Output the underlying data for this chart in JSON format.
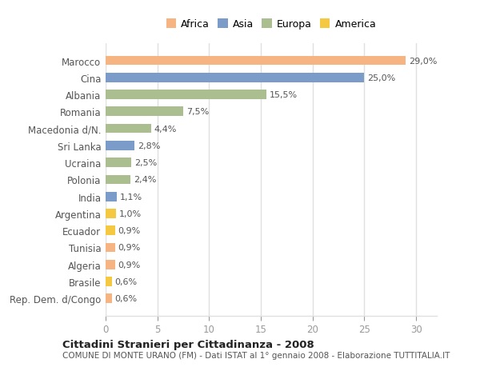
{
  "categories": [
    "Marocco",
    "Cina",
    "Albania",
    "Romania",
    "Macedonia d/N.",
    "Sri Lanka",
    "Ucraina",
    "Polonia",
    "India",
    "Argentina",
    "Ecuador",
    "Tunisia",
    "Algeria",
    "Brasile",
    "Rep. Dem. d/Congo"
  ],
  "values": [
    29.0,
    25.0,
    15.5,
    7.5,
    4.4,
    2.8,
    2.5,
    2.4,
    1.1,
    1.0,
    0.9,
    0.9,
    0.9,
    0.6,
    0.6
  ],
  "labels": [
    "29,0%",
    "25,0%",
    "15,5%",
    "7,5%",
    "4,4%",
    "2,8%",
    "2,5%",
    "2,4%",
    "1,1%",
    "1,0%",
    "0,9%",
    "0,9%",
    "0,9%",
    "0,6%",
    "0,6%"
  ],
  "continents": [
    "Africa",
    "Asia",
    "Europa",
    "Europa",
    "Europa",
    "Asia",
    "Europa",
    "Europa",
    "Asia",
    "America",
    "America",
    "Africa",
    "Africa",
    "America",
    "Africa"
  ],
  "title": "Cittadini Stranieri per Cittadinanza - 2008",
  "subtitle": "COMUNE DI MONTE URANO (FM) - Dati ISTAT al 1° gennaio 2008 - Elaborazione TUTTITALIA.IT",
  "xlim": [
    0,
    32
  ],
  "xticks": [
    0,
    5,
    10,
    15,
    20,
    25,
    30
  ],
  "bg_color": "#FFFFFF",
  "plot_bg_color": "#FFFFFF",
  "africa_color": "#F5B482",
  "asia_color": "#7B9CC9",
  "europa_color": "#ABBE8F",
  "america_color": "#F5C842",
  "grid_color": "#E0E0E0",
  "label_color": "#555555",
  "tick_color": "#999999"
}
